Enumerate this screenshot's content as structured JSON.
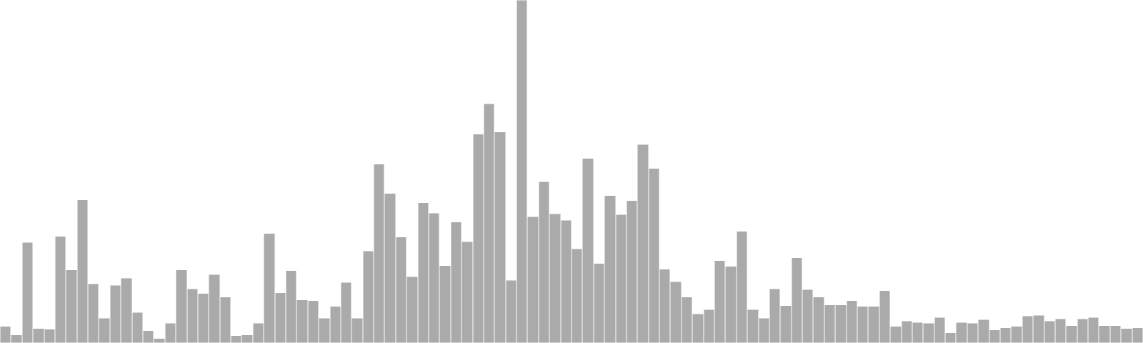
{
  "chart_data": {
    "type": "bar",
    "title": "",
    "xlabel": "",
    "ylabel": "",
    "ylim": [
      0,
      470
    ],
    "grid": false,
    "axes_visible": false,
    "bar_color": "#aaaaaa",
    "bar_edge_color": "#ffffff",
    "background_color": "#ffffff",
    "values": [
      23,
      11,
      138,
      20,
      19,
      146,
      100,
      196,
      81,
      34,
      79,
      89,
      42,
      17,
      6,
      27,
      100,
      74,
      68,
      94,
      63,
      10,
      11,
      27,
      150,
      69,
      99,
      59,
      58,
      34,
      50,
      83,
      34,
      126,
      245,
      205,
      145,
      91,
      192,
      178,
      106,
      166,
      139,
      286,
      328,
      289,
      86,
      470,
      173,
      221,
      177,
      168,
      129,
      253,
      109,
      202,
      176,
      195,
      272,
      239,
      101,
      84,
      63,
      40,
      46,
      113,
      105,
      153,
      46,
      34,
      74,
      51,
      117,
      73,
      63,
      52,
      52,
      58,
      50,
      50,
      72,
      23,
      30,
      28,
      27,
      35,
      14,
      28,
      27,
      32,
      18,
      21,
      23,
      37,
      38,
      30,
      33,
      24,
      33,
      35,
      24,
      24,
      20,
      21
    ]
  }
}
